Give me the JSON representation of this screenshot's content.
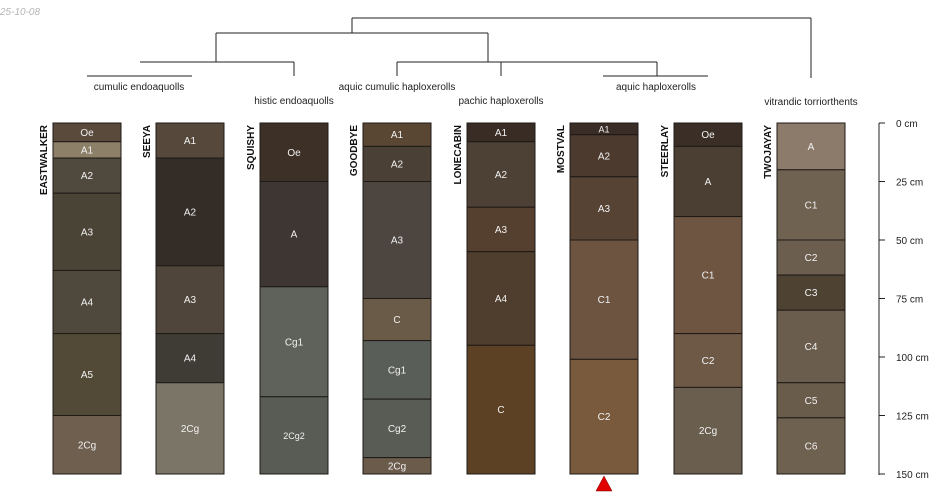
{
  "datestamp": "25-10-08",
  "depth_axis": {
    "unit": "cm",
    "max_depth": 150,
    "ticks": [
      {
        "value": 0,
        "label": "0 cm"
      },
      {
        "value": 25,
        "label": "25 cm"
      },
      {
        "value": 50,
        "label": "50 cm"
      },
      {
        "value": 75,
        "label": "75 cm"
      },
      {
        "value": 100,
        "label": "100 cm"
      },
      {
        "value": 125,
        "label": "125 cm"
      },
      {
        "value": 150,
        "label": "150 cm"
      }
    ]
  },
  "groups": [
    {
      "label": "cumulic endoaquolls"
    },
    {
      "label": "histic endoaquolls"
    },
    {
      "label": "aquic cumulic haploxerolls"
    },
    {
      "label": "pachic haploxerolls"
    },
    {
      "label": "aquic haploxerolls"
    },
    {
      "label": "vitrandic torriorthents"
    }
  ],
  "profiles": [
    {
      "name": "EASTWALKER",
      "horizons": [
        {
          "name": "Oe",
          "top": 0,
          "bottom": 8,
          "color": "#5a4a3b"
        },
        {
          "name": "A1",
          "top": 8,
          "bottom": 15,
          "color": "#8d8068"
        },
        {
          "name": "A2",
          "top": 15,
          "bottom": 30,
          "color": "#4f4a3d"
        },
        {
          "name": "A3",
          "top": 30,
          "bottom": 63,
          "color": "#4a4437"
        },
        {
          "name": "A4",
          "top": 63,
          "bottom": 90,
          "color": "#4e493c"
        },
        {
          "name": "A5",
          "top": 90,
          "bottom": 125,
          "color": "#524a36"
        },
        {
          "name": "2Cg",
          "top": 125,
          "bottom": 150,
          "color": "#6e5f4f"
        }
      ]
    },
    {
      "name": "SEEYA",
      "horizons": [
        {
          "name": "A1",
          "top": 0,
          "bottom": 15,
          "color": "#56493c"
        },
        {
          "name": "A2",
          "top": 15,
          "bottom": 61,
          "color": "#342c27"
        },
        {
          "name": "A3",
          "top": 61,
          "bottom": 90,
          "color": "#4f453b"
        },
        {
          "name": "A4",
          "top": 90,
          "bottom": 111,
          "color": "#3f3b35"
        },
        {
          "name": "2Cg",
          "top": 111,
          "bottom": 150,
          "color": "#7b7567"
        }
      ]
    },
    {
      "name": "SQUISHY",
      "horizons": [
        {
          "name": "Oe",
          "top": 0,
          "bottom": 25,
          "color": "#3d3027"
        },
        {
          "name": "A",
          "top": 25,
          "bottom": 70,
          "color": "#3d3632"
        },
        {
          "name": "Cg1",
          "top": 70,
          "bottom": 117,
          "color": "#5e625b"
        },
        {
          "name": "2Cg2",
          "top": 117,
          "bottom": 150,
          "color": "#585c55"
        }
      ]
    },
    {
      "name": "GOODBYE",
      "horizons": [
        {
          "name": "A1",
          "top": 0,
          "bottom": 10,
          "color": "#594733"
        },
        {
          "name": "A2",
          "top": 10,
          "bottom": 25,
          "color": "#4b4035"
        },
        {
          "name": "A3",
          "top": 25,
          "bottom": 75,
          "color": "#4c4540"
        },
        {
          "name": "C",
          "top": 75,
          "bottom": 93,
          "color": "#6a5b48"
        },
        {
          "name": "Cg1",
          "top": 93,
          "bottom": 118,
          "color": "#5a5e58"
        },
        {
          "name": "Cg2",
          "top": 118,
          "bottom": 143,
          "color": "#595b55"
        },
        {
          "name": "2Cg",
          "top": 143,
          "bottom": 150,
          "color": "#6b5b4a"
        }
      ]
    },
    {
      "name": "LONECABIN",
      "horizons": [
        {
          "name": "A1",
          "top": 0,
          "bottom": 8,
          "color": "#392c25"
        },
        {
          "name": "A2",
          "top": 8,
          "bottom": 36,
          "color": "#4d4034"
        },
        {
          "name": "A3",
          "top": 36,
          "bottom": 55,
          "color": "#553f2e"
        },
        {
          "name": "A4",
          "top": 55,
          "bottom": 95,
          "color": "#4f3d2d"
        },
        {
          "name": "C",
          "top": 95,
          "bottom": 150,
          "color": "#5c4125"
        }
      ]
    },
    {
      "name": "MOSTVAL",
      "horizons": [
        {
          "name": "A1",
          "top": 0,
          "bottom": 5,
          "color": "#3a2c26"
        },
        {
          "name": "A2",
          "top": 5,
          "bottom": 23,
          "color": "#4b3a2d"
        },
        {
          "name": "A3",
          "top": 23,
          "bottom": 50,
          "color": "#574334"
        },
        {
          "name": "C1",
          "top": 50,
          "bottom": 101,
          "color": "#6c5440"
        },
        {
          "name": "C2",
          "top": 101,
          "bottom": 150,
          "color": "#7a5a3c"
        }
      ]
    },
    {
      "name": "STEERLAY",
      "horizons": [
        {
          "name": "Oe",
          "top": 0,
          "bottom": 10,
          "color": "#3a2e26"
        },
        {
          "name": "A",
          "top": 10,
          "bottom": 40,
          "color": "#4b3e33"
        },
        {
          "name": "C1",
          "top": 40,
          "bottom": 90,
          "color": "#6e5541"
        },
        {
          "name": "C2",
          "top": 90,
          "bottom": 113,
          "color": "#6e5846"
        },
        {
          "name": "2Cg",
          "top": 113,
          "bottom": 150,
          "color": "#6a5e4f"
        }
      ]
    },
    {
      "name": "TWOJAYAY",
      "horizons": [
        {
          "name": "A",
          "top": 0,
          "bottom": 20,
          "color": "#8c7b6b"
        },
        {
          "name": "C1",
          "top": 20,
          "bottom": 50,
          "color": "#6f6251"
        },
        {
          "name": "C2",
          "top": 50,
          "bottom": 65,
          "color": "#6c5e4f"
        },
        {
          "name": "C3",
          "top": 65,
          "bottom": 80,
          "color": "#4e4233"
        },
        {
          "name": "C4",
          "top": 80,
          "bottom": 111,
          "color": "#6b5d4d"
        },
        {
          "name": "C5",
          "top": 111,
          "bottom": 126,
          "color": "#6a5c4b"
        },
        {
          "name": "C6",
          "top": 126,
          "bottom": 150,
          "color": "#6f6150"
        }
      ]
    }
  ],
  "marker": {
    "profile": "MOSTVAL",
    "color": "#e00000"
  }
}
